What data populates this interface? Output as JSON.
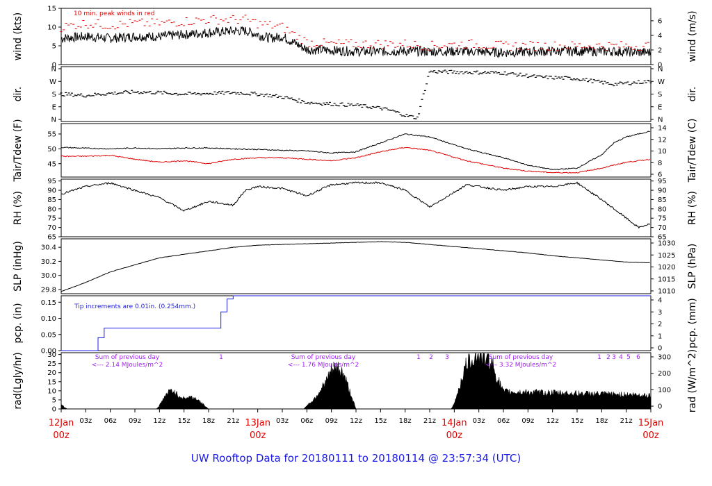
{
  "title": "UW Rooftop Data for 20180111  to  20180114 @ 23:57:34  (UTC)",
  "colors": {
    "black": "#000000",
    "red": "#e00000",
    "blue": "#1a1ae6",
    "purple": "#a020f0"
  },
  "chart_data": [
    {
      "type": "line",
      "ylabel": "wind (kts)",
      "ylabel_right": "wind (m/s)",
      "ylim": [
        0,
        15
      ],
      "yticks": [
        "0",
        "5",
        "10",
        "15"
      ],
      "ylim_right": [
        0,
        7.7
      ],
      "yticks_right": [
        "0",
        "2",
        "4",
        "6"
      ],
      "annotation": "10 min. peak winds in red",
      "series": [
        {
          "color": "#000000",
          "x": [
            0,
            4,
            8,
            12,
            16,
            20,
            24,
            28,
            30,
            32,
            34,
            36,
            40,
            44,
            48,
            52,
            56,
            60,
            66,
            72,
            78,
            84,
            90,
            96
          ],
          "values": [
            7,
            7.5,
            7,
            7.5,
            7.5,
            8,
            8.5,
            9,
            9,
            8,
            7,
            7.5,
            4,
            3.8,
            3.5,
            3.5,
            3.6,
            3.5,
            3.5,
            3.2,
            3.5,
            3.6,
            3.5,
            3.2
          ]
        },
        {
          "color": "#e00000",
          "x": [
            0,
            4,
            8,
            12,
            16,
            20,
            24,
            28,
            30,
            32,
            34,
            36,
            40,
            44,
            48,
            52,
            56,
            60,
            66,
            72,
            78,
            84,
            90,
            96
          ],
          "values": [
            10,
            11,
            10.5,
            11,
            11,
            11.5,
            12,
            12,
            12,
            11,
            10.5,
            10,
            6,
            5.5,
            5.5,
            5.5,
            5.5,
            5,
            5.5,
            5,
            5,
            5,
            5,
            5
          ]
        }
      ]
    },
    {
      "type": "scatter",
      "ylabel": "dir.",
      "yticks": [
        "N",
        "E",
        "S",
        "W",
        "N"
      ],
      "series": [
        {
          "color": "#000000",
          "x": [
            0,
            4,
            8,
            12,
            16,
            20,
            24,
            28,
            32,
            36,
            40,
            44,
            48,
            52,
            54,
            56,
            58,
            60,
            66,
            72,
            78,
            84,
            90,
            96
          ],
          "values": [
            180,
            170,
            185,
            195,
            190,
            180,
            185,
            190,
            180,
            160,
            120,
            110,
            100,
            80,
            60,
            30,
            10,
            340,
            335,
            330,
            300,
            290,
            250,
            270
          ]
        }
      ]
    },
    {
      "type": "line",
      "ylabel": "Tair/Tdew (F)",
      "ylabel_right": "Tair/Tdew (C)",
      "ylim": [
        40.5,
        58.5
      ],
      "yticks": [
        "45",
        "50",
        "55"
      ],
      "yticks_right": [
        "6",
        "8",
        "10",
        "12",
        "14"
      ],
      "series": [
        {
          "color": "#000000",
          "x": [
            0,
            4,
            8,
            12,
            16,
            20,
            24,
            28,
            32,
            36,
            40,
            44,
            48,
            52,
            56,
            60,
            66,
            72,
            76,
            80,
            84,
            88,
            90,
            92,
            94,
            96
          ],
          "values": [
            50.5,
            50.2,
            50,
            50.3,
            50,
            50.3,
            50.3,
            50,
            49.8,
            49.5,
            49.3,
            48.6,
            49,
            52,
            55,
            54,
            50,
            47,
            44.5,
            43,
            43.5,
            48,
            52,
            54,
            55,
            56
          ]
        },
        {
          "color": "#e00000",
          "x": [
            0,
            4,
            8,
            12,
            16,
            20,
            24,
            28,
            32,
            36,
            40,
            44,
            48,
            52,
            56,
            60,
            66,
            72,
            76,
            80,
            84,
            88,
            90,
            92,
            94,
            96
          ],
          "values": [
            47.5,
            47.5,
            47.8,
            46.5,
            45.5,
            46,
            45,
            46.5,
            47,
            47,
            46.5,
            46,
            47,
            49,
            50.5,
            49.5,
            46,
            43.5,
            42.5,
            42,
            42,
            43.5,
            44.5,
            45.5,
            46,
            46.5
          ]
        }
      ]
    },
    {
      "type": "line",
      "ylabel": "RH (%)",
      "ylabel_right": "RH (%)",
      "ylim": [
        65,
        96
      ],
      "yticks": [
        "65",
        "70",
        "75",
        "80",
        "85",
        "90",
        "95"
      ],
      "series": [
        {
          "color": "#000000",
          "x": [
            0,
            4,
            8,
            12,
            16,
            20,
            24,
            28,
            30,
            32,
            36,
            40,
            44,
            48,
            52,
            56,
            60,
            66,
            72,
            76,
            80,
            84,
            88,
            92,
            94,
            96
          ],
          "values": [
            88,
            92,
            94,
            90,
            86,
            79,
            84,
            82,
            90,
            92,
            91,
            87,
            93,
            94,
            94,
            90,
            81,
            93,
            90,
            92,
            92,
            94,
            85,
            75,
            70,
            72
          ]
        }
      ]
    },
    {
      "type": "line",
      "ylabel": "SLP (inHg)",
      "ylabel_right": "SLP (hPa)",
      "ylim": [
        29.74,
        30.52
      ],
      "yticks": [
        "29.8",
        "30.0",
        "30.2",
        "30.4"
      ],
      "yticks_right": [
        "1010",
        "1015",
        "1020",
        "1025",
        "1030"
      ],
      "series": [
        {
          "color": "#000000",
          "x": [
            0,
            4,
            8,
            12,
            16,
            20,
            24,
            28,
            32,
            36,
            40,
            44,
            48,
            52,
            56,
            60,
            64,
            68,
            72,
            76,
            80,
            84,
            88,
            92,
            96
          ],
          "values": [
            29.77,
            29.9,
            30.05,
            30.15,
            30.25,
            30.3,
            30.35,
            30.4,
            30.43,
            30.44,
            30.45,
            30.46,
            30.47,
            30.48,
            30.47,
            30.44,
            30.41,
            30.38,
            30.35,
            30.32,
            30.28,
            30.25,
            30.22,
            30.19,
            30.18
          ]
        }
      ]
    },
    {
      "type": "line",
      "ylabel": "pcp. (in)",
      "ylabel_right": "pcp. (mm)",
      "ylim": [
        0,
        0.17
      ],
      "yticks": [
        "0.00",
        "0.05",
        "0.10",
        "0.15"
      ],
      "yticks_right": [
        "0",
        "1",
        "2",
        "3",
        "4"
      ],
      "annotation": "Tip increments are 0.01in. (0.254mm.)",
      "series": [
        {
          "color": "#1a1ae6",
          "x": [
            0,
            5,
            6,
            7,
            24,
            26,
            27,
            28,
            96
          ],
          "values": [
            0,
            0,
            0.04,
            0.07,
            0.07,
            0.12,
            0.16,
            0.17,
            0.17
          ]
        }
      ]
    },
    {
      "type": "area",
      "ylabel": "rad(Lgly/hr)",
      "ylabel_right": "rad (W/m^2)",
      "ylim": [
        0,
        31
      ],
      "yticks": [
        "0",
        "5",
        "10",
        "15",
        "20",
        "25",
        "30"
      ],
      "yticks_right": [
        "0",
        "100",
        "200",
        "300"
      ],
      "annotations": [
        {
          "text": "Sum of previous day",
          "sub": "<--- 2.14 MJoules/m^2"
        },
        {
          "text": "Sum of previous day",
          "sub": "<--- 1.76 MJoules/m^2"
        },
        {
          "text": "Sum of previous day",
          "sub": "<--- 3.32 MJoules/m^2"
        }
      ],
      "markers": [
        "1",
        "1",
        "2",
        "3",
        "1",
        "2",
        "3",
        "4",
        "5",
        "6"
      ],
      "series": [
        {
          "color": "#000000",
          "x": [
            0,
            0.5,
            1,
            15.5,
            16,
            17,
            18,
            19,
            20,
            21,
            22,
            23,
            24,
            39.5,
            40,
            41,
            42,
            43,
            44,
            45,
            46,
            47,
            48,
            63.5,
            64,
            65,
            66,
            67,
            68,
            69,
            70,
            71,
            72,
            96
          ],
          "values": [
            3,
            1,
            0,
            0,
            2,
            8,
            11,
            8,
            6,
            7,
            6,
            3,
            0,
            0,
            2,
            5,
            10,
            15,
            22,
            24,
            20,
            10,
            0,
            0,
            3,
            15,
            26,
            30,
            31,
            30,
            28,
            18,
            10,
            8
          ]
        }
      ]
    }
  ],
  "x_axis": {
    "ticks": [
      "12Jan",
      "03z",
      "06z",
      "09z",
      "12z",
      "15z",
      "18z",
      "21z",
      "13Jan",
      "03z",
      "06z",
      "09z",
      "12z",
      "15z",
      "18z",
      "21z",
      "14Jan",
      "03z",
      "06z",
      "09z",
      "12z",
      "15z",
      "18z",
      "21z",
      "15Jan"
    ],
    "day_sub": "00z"
  }
}
